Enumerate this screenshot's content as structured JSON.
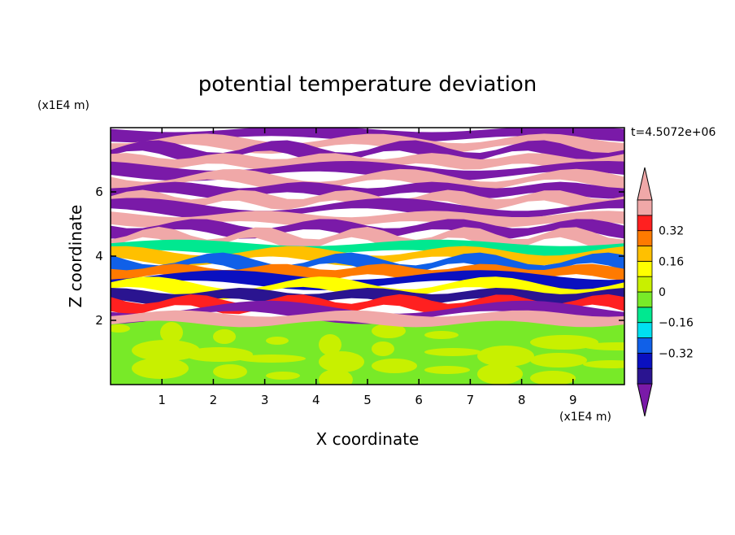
{
  "chart_data": {
    "type": "heatmap",
    "title": "potential temperature deviation",
    "xlabel": "X coordinate",
    "ylabel": "Z coordinate",
    "x_unit": "(x1E4 m)",
    "y_unit": "(x1E4 m)",
    "time_label": "t=4.5072e+06",
    "xlim": [
      0,
      10
    ],
    "ylim": [
      0,
      8
    ],
    "x_ticks": [
      "1",
      "2",
      "3",
      "4",
      "5",
      "6",
      "7",
      "8",
      "9"
    ],
    "y_ticks": [
      "2",
      "4",
      "6"
    ],
    "colorbar": {
      "levels": [
        -0.48,
        -0.4,
        -0.32,
        -0.24,
        -0.16,
        -0.08,
        0,
        0.08,
        0.16,
        0.24,
        0.32,
        0.4,
        0.48
      ],
      "colors": [
        "#7a1aa8",
        "#2a1490",
        "#0a10c0",
        "#1060e8",
        "#00e0f0",
        "#00e890",
        "#78ea28",
        "#c8f000",
        "#ffff00",
        "#ffc000",
        "#ff7a00",
        "#ff2020",
        "#f0a8a8"
      ],
      "tick_labels": [
        "0.32",
        "0.16",
        "0",
        "−0.16",
        "−0.32"
      ],
      "tick_values": [
        0.32,
        0.16,
        0,
        -0.16,
        -0.32
      ]
    },
    "bands": [
      {
        "z": 7.8,
        "value": -0.5
      },
      {
        "z": 7.5,
        "value": 0.5
      },
      {
        "z": 7.25,
        "value": -0.5
      },
      {
        "z": 6.95,
        "value": 0.5
      },
      {
        "z": 6.65,
        "value": -0.5
      },
      {
        "z": 6.35,
        "value": 0.5
      },
      {
        "z": 6.05,
        "value": -0.5
      },
      {
        "z": 5.75,
        "value": 0.5
      },
      {
        "z": 5.45,
        "value": -0.5
      },
      {
        "z": 5.15,
        "value": 0.5
      },
      {
        "z": 4.85,
        "value": -0.5
      },
      {
        "z": 4.55,
        "value": 0.5
      },
      {
        "z": 4.25,
        "value": -0.1
      },
      {
        "z": 4.0,
        "value": 0.2
      },
      {
        "z": 3.75,
        "value": -0.3
      },
      {
        "z": 3.5,
        "value": 0.3
      },
      {
        "z": 3.25,
        "value": -0.4
      },
      {
        "z": 3.0,
        "value": 0.1
      },
      {
        "z": 2.75,
        "value": -0.45
      },
      {
        "z": 2.5,
        "value": 0.35
      },
      {
        "z": 2.25,
        "value": -0.5
      },
      {
        "z": 2.05,
        "value": 0.4
      }
    ],
    "lower_layer": {
      "z_top": 2.0,
      "values": [
        -0.02,
        0.03
      ]
    }
  }
}
